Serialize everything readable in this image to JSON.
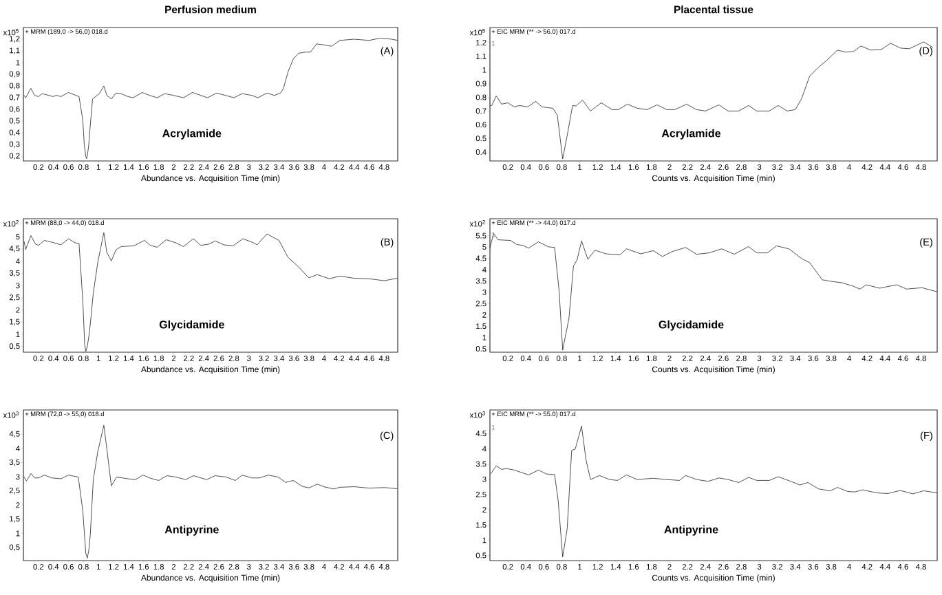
{
  "chart_data": [
    {
      "type": "line",
      "title": "Perfusion medium",
      "xlabel": "Abundance vs. Acquisition Time (min)",
      "ylabel": "x10$^{5}$",
      "annotations": [
        "+ MRM (189,0 -> 56,0) 018.d",
        "(A)",
        "Acrylamide"
      ],
      "xlim": [
        0,
        4.98
      ],
      "ylim": [
        0.16,
        1.3
      ],
      "xticks": [
        0.2,
        0.4,
        0.6,
        0.8,
        1,
        1.2,
        1.4,
        1.6,
        1.8,
        2,
        2.2,
        2.4,
        2.6,
        2.8,
        3,
        3.2,
        3.4,
        3.6,
        3.8,
        4,
        4.2,
        4.4,
        4.6,
        4.8
      ],
      "yticks": [
        {
          "value": 0.2,
          "label": "0,2"
        },
        {
          "value": 0.3,
          "label": "0,3"
        },
        {
          "value": 0.4,
          "label": "0,4"
        },
        {
          "value": 0.5,
          "label": "0,5"
        },
        {
          "value": 0.6,
          "label": "0,6"
        },
        {
          "value": 0.7,
          "label": "0,7"
        },
        {
          "value": 0.8,
          "label": "0,8"
        },
        {
          "value": 0.9,
          "label": "0,9"
        },
        1,
        {
          "value": 1.1,
          "label": "1,1"
        },
        {
          "value": 1.2,
          "label": "1,2"
        }
      ],
      "x": [
        0.01,
        0.03,
        0.1,
        0.15,
        0.2,
        0.25,
        0.34,
        0.39,
        0.44,
        0.5,
        0.6,
        0.7,
        0.74,
        0.79,
        0.81,
        0.83,
        0.84,
        0.85,
        0.87,
        0.88,
        0.92,
        1.01,
        1.07,
        1.11,
        1.17,
        1.23,
        1.3,
        1.39,
        1.46,
        1.58,
        1.68,
        1.78,
        1.88,
        2.0,
        2.13,
        2.25,
        2.36,
        2.45,
        2.57,
        2.69,
        2.8,
        2.91,
        3.04,
        3.12,
        3.24,
        3.34,
        3.42,
        3.46,
        3.52,
        3.59,
        3.66,
        3.75,
        3.82,
        3.9,
        4.01,
        4.1,
        4.21,
        4.4,
        4.6,
        4.75,
        4.9,
        4.98
      ],
      "series": [
        {
          "color": "#222222",
          "values": [
            0.72,
            0.7,
            0.78,
            0.72,
            0.71,
            0.735,
            0.72,
            0.71,
            0.72,
            0.71,
            0.745,
            0.72,
            0.71,
            0.51,
            0.3,
            0.2,
            0.18,
            0.2,
            0.3,
            0.39,
            0.69,
            0.735,
            0.8,
            0.72,
            0.69,
            0.74,
            0.735,
            0.71,
            0.7,
            0.745,
            0.72,
            0.7,
            0.735,
            0.72,
            0.7,
            0.745,
            0.72,
            0.7,
            0.74,
            0.72,
            0.7,
            0.735,
            0.72,
            0.7,
            0.74,
            0.72,
            0.74,
            0.78,
            0.92,
            1.03,
            1.08,
            1.09,
            1.09,
            1.16,
            1.15,
            1.14,
            1.19,
            1.2,
            1.19,
            1.21,
            1.2,
            1.19
          ]
        }
      ]
    },
    {
      "type": "line",
      "title": "Placental tissue",
      "xlabel": "Counts vs. Acquisition Time (min)",
      "ylabel": "x10$^{5}$",
      "annotations": [
        "+ EIC MRM (** -> 56.0) 017.d",
        "(D)",
        "Acrylamide",
        "1"
      ],
      "xlim": [
        0,
        4.98
      ],
      "ylim": [
        0.335,
        1.31
      ],
      "xticks": [
        0.2,
        0.4,
        0.6,
        0.8,
        1,
        1.2,
        1.4,
        1.6,
        1.8,
        2,
        2.2,
        2.4,
        2.6,
        2.8,
        3,
        3.2,
        3.4,
        3.6,
        3.8,
        4,
        4.2,
        4.4,
        4.6,
        4.8
      ],
      "yticks": [
        0.4,
        0.5,
        0.6,
        0.7,
        0.8,
        0.9,
        1,
        1.1,
        1.2
      ],
      "x": [
        0.0,
        0.02,
        0.07,
        0.13,
        0.2,
        0.27,
        0.33,
        0.42,
        0.51,
        0.58,
        0.7,
        0.75,
        0.81,
        0.86,
        0.92,
        0.96,
        1.03,
        1.12,
        1.24,
        1.36,
        1.43,
        1.53,
        1.64,
        1.75,
        1.86,
        1.97,
        2.06,
        2.19,
        2.3,
        2.4,
        2.55,
        2.65,
        2.77,
        2.88,
        2.97,
        3.11,
        3.21,
        3.31,
        3.4,
        3.47,
        3.56,
        3.66,
        3.75,
        3.87,
        3.96,
        4.05,
        4.13,
        4.24,
        4.36,
        4.46,
        4.57,
        4.67,
        4.83,
        4.93
      ],
      "series": [
        {
          "color": "#222222",
          "values": [
            0.737,
            0.74,
            0.81,
            0.75,
            0.76,
            0.73,
            0.74,
            0.73,
            0.77,
            0.73,
            0.72,
            0.67,
            0.35,
            0.52,
            0.74,
            0.737,
            0.78,
            0.7,
            0.76,
            0.71,
            0.71,
            0.75,
            0.72,
            0.71,
            0.745,
            0.71,
            0.71,
            0.75,
            0.71,
            0.7,
            0.745,
            0.7,
            0.7,
            0.74,
            0.7,
            0.7,
            0.74,
            0.7,
            0.71,
            0.79,
            0.955,
            1.02,
            1.07,
            1.145,
            1.13,
            1.135,
            1.175,
            1.145,
            1.15,
            1.195,
            1.16,
            1.155,
            1.205,
            1.165
          ]
        }
      ]
    },
    {
      "type": "line",
      "xlabel": "Abundance vs. Acquisition Time (min)",
      "ylabel": "x10$^{2}$",
      "annotations": [
        "+ MRM (88,0 -> 44,0) 018.d",
        "(B)",
        "Glycidamide"
      ],
      "xlim": [
        0,
        4.98
      ],
      "ylim": [
        0.27,
        5.74
      ],
      "xticks": [
        0.2,
        0.4,
        0.6,
        0.8,
        1,
        1.2,
        1.4,
        1.6,
        1.8,
        2,
        2.2,
        2.4,
        2.6,
        2.8,
        3,
        3.2,
        3.4,
        3.6,
        3.8,
        4,
        4.2,
        4.4,
        4.6,
        4.8
      ],
      "yticks": [
        {
          "value": 0.5,
          "label": "0,5"
        },
        1,
        {
          "value": 1.5,
          "label": "1,5"
        },
        2,
        {
          "value": 2.5,
          "label": "2,5"
        },
        3,
        {
          "value": 3.5,
          "label": "3,5"
        },
        4,
        {
          "value": 4.5,
          "label": "4,5"
        },
        5
      ],
      "x": [
        0.01,
        0.03,
        0.1,
        0.16,
        0.2,
        0.28,
        0.39,
        0.5,
        0.6,
        0.69,
        0.74,
        0.79,
        0.815,
        0.83,
        0.85,
        0.88,
        0.93,
        0.99,
        1.07,
        1.11,
        1.17,
        1.23,
        1.3,
        1.47,
        1.61,
        1.69,
        1.78,
        1.9,
        2.03,
        2.13,
        2.26,
        2.36,
        2.47,
        2.55,
        2.67,
        2.79,
        2.92,
        3.05,
        3.11,
        3.24,
        3.4,
        3.52,
        3.66,
        3.78,
        3.8,
        3.91,
        4.07,
        4.21,
        4.4,
        4.6,
        4.8,
        4.97
      ],
      "series": [
        {
          "color": "#222222",
          "values": [
            4.8,
            4.48,
            5.05,
            4.7,
            4.65,
            4.85,
            4.77,
            4.67,
            4.92,
            4.75,
            4.73,
            2.39,
            0.6,
            0.3,
            0.5,
            1.11,
            2.69,
            3.96,
            5.17,
            4.36,
            4.01,
            4.46,
            4.6,
            4.63,
            4.85,
            4.65,
            4.57,
            4.88,
            4.75,
            4.6,
            4.92,
            4.65,
            4.7,
            4.83,
            4.67,
            4.63,
            4.92,
            4.77,
            4.67,
            5.12,
            4.85,
            4.16,
            3.77,
            3.37,
            3.32,
            3.45,
            3.28,
            3.39,
            3.3,
            3.28,
            3.2,
            3.3
          ]
        }
      ]
    },
    {
      "type": "line",
      "xlabel": "Counts vs. Acquisition Time (min)",
      "ylabel": "x10$^{2}$",
      "annotations": [
        "+ EIC MRM (** -> 44.0) 017.d",
        "(E)",
        "Glycidamide",
        "1"
      ],
      "xlim": [
        0,
        4.98
      ],
      "ylim": [
        0.35,
        6.25
      ],
      "xticks": [
        0.2,
        0.4,
        0.6,
        0.8,
        1,
        1.2,
        1.4,
        1.6,
        1.8,
        2,
        2.2,
        2.4,
        2.6,
        2.8,
        3,
        3.2,
        3.4,
        3.6,
        3.8,
        4,
        4.2,
        4.4,
        4.6,
        4.8
      ],
      "yticks": [
        0.5,
        1,
        1.5,
        2,
        2.5,
        3,
        3.5,
        4,
        4.5,
        5,
        5.5
      ],
      "x": [
        0.0,
        0.04,
        0.09,
        0.23,
        0.3,
        0.37,
        0.43,
        0.54,
        0.65,
        0.72,
        0.77,
        0.81,
        0.88,
        0.93,
        0.97,
        1.02,
        1.09,
        1.17,
        1.29,
        1.45,
        1.52,
        1.68,
        1.82,
        1.92,
        2.03,
        2.18,
        2.3,
        2.44,
        2.58,
        2.72,
        2.88,
        2.97,
        3.09,
        3.19,
        3.33,
        3.47,
        3.56,
        3.7,
        3.82,
        3.92,
        4.05,
        4.12,
        4.19,
        4.34,
        4.53,
        4.64,
        4.81,
        4.98
      ],
      "series": [
        {
          "color": "#222222",
          "values": [
            4.95,
            5.6,
            5.32,
            5.29,
            5.11,
            5.07,
            4.95,
            5.23,
            5.01,
            4.98,
            3.08,
            0.44,
            1.85,
            4.16,
            4.43,
            5.27,
            4.46,
            4.86,
            4.7,
            4.65,
            4.92,
            4.7,
            4.84,
            4.58,
            4.8,
            4.98,
            4.68,
            4.74,
            4.92,
            4.68,
            5.02,
            4.74,
            4.74,
            5.05,
            4.92,
            4.49,
            4.31,
            3.55,
            3.47,
            3.42,
            3.26,
            3.14,
            3.33,
            3.18,
            3.33,
            3.14,
            3.2,
            3.02
          ]
        }
      ]
    },
    {
      "type": "line",
      "xlabel": "Abundance vs. Acquisition Time (min)",
      "ylabel": "x10$^{3}$",
      "annotations": [
        "+ MRM (72,0 -> 55,0) 018.d",
        "(C)",
        "Antipyrine"
      ],
      "xlim": [
        0,
        4.98
      ],
      "ylim": [
        0.04,
        5.36
      ],
      "xticks": [
        0.2,
        0.4,
        0.6,
        0.8,
        1,
        1.2,
        1.4,
        1.6,
        1.8,
        2,
        2.2,
        2.4,
        2.6,
        2.8,
        3,
        3.2,
        3.4,
        3.6,
        3.8,
        4,
        4.2,
        4.4,
        4.6,
        4.8
      ],
      "yticks": [
        {
          "value": 0.5,
          "label": "0,5"
        },
        1,
        {
          "value": 1.5,
          "label": "1,5"
        },
        2,
        {
          "value": 2.5,
          "label": "2,5"
        },
        3,
        {
          "value": 3.5,
          "label": "3,5"
        },
        4,
        {
          "value": 4.5,
          "label": "4,5"
        }
      ],
      "x": [
        0.01,
        0.04,
        0.1,
        0.15,
        0.2,
        0.28,
        0.38,
        0.5,
        0.6,
        0.73,
        0.79,
        0.83,
        0.85,
        0.87,
        0.89,
        0.93,
        0.99,
        1.07,
        1.11,
        1.17,
        1.24,
        1.39,
        1.49,
        1.59,
        1.69,
        1.8,
        1.91,
        2.03,
        2.16,
        2.26,
        2.44,
        2.55,
        2.7,
        2.82,
        2.91,
        3.04,
        3.14,
        3.26,
        3.39,
        3.49,
        3.59,
        3.71,
        3.8,
        3.91,
        4.01,
        4.13,
        4.21,
        4.4,
        4.6,
        4.8,
        4.97
      ],
      "series": [
        {
          "color": "#222222",
          "values": [
            2.99,
            2.85,
            3.12,
            2.96,
            2.96,
            3.06,
            2.96,
            2.93,
            3.06,
            2.99,
            1.81,
            0.3,
            0.13,
            0.4,
            0.95,
            2.9,
            3.89,
            4.82,
            3.99,
            2.68,
            2.99,
            2.93,
            2.9,
            3.06,
            2.95,
            2.87,
            3.04,
            2.99,
            2.9,
            3.04,
            2.9,
            3.04,
            2.99,
            2.87,
            3.06,
            2.96,
            2.96,
            3.06,
            2.99,
            2.8,
            2.87,
            2.66,
            2.61,
            2.74,
            2.64,
            2.57,
            2.63,
            2.65,
            2.6,
            2.62,
            2.58
          ]
        }
      ]
    },
    {
      "type": "line",
      "xlabel": "Counts vs. Acquisition Time (min)",
      "ylabel": "x10$^{3}$",
      "annotations": [
        "+ EIC MRM (** -> 55.0) 017.d",
        "(F)",
        "Antipyrine",
        "1"
      ],
      "xlim": [
        0,
        4.98
      ],
      "ylim": [
        0.33,
        5.27
      ],
      "xticks": [
        0.2,
        0.4,
        0.6,
        0.8,
        1,
        1.2,
        1.4,
        1.6,
        1.8,
        2,
        2.2,
        2.4,
        2.6,
        2.8,
        3,
        3.2,
        3.4,
        3.6,
        3.8,
        4,
        4.2,
        4.4,
        4.6,
        4.8
      ],
      "yticks": [
        0.5,
        1,
        1.5,
        2,
        2.5,
        3,
        3.5,
        4,
        4.5
      ],
      "x": [
        0.0,
        0.02,
        0.07,
        0.13,
        0.18,
        0.27,
        0.35,
        0.43,
        0.54,
        0.63,
        0.72,
        0.76,
        0.81,
        0.86,
        0.91,
        0.95,
        1.02,
        1.07,
        1.12,
        1.22,
        1.33,
        1.42,
        1.52,
        1.64,
        1.82,
        1.96,
        2.11,
        2.18,
        2.3,
        2.43,
        2.55,
        2.65,
        2.77,
        2.88,
        2.97,
        3.11,
        3.21,
        3.35,
        3.45,
        3.54,
        3.66,
        3.79,
        3.87,
        3.98,
        4.06,
        4.15,
        4.31,
        4.43,
        4.57,
        4.71,
        4.83,
        4.98
      ],
      "series": [
        {
          "color": "#222222",
          "values": [
            3.17,
            3.22,
            3.44,
            3.32,
            3.35,
            3.3,
            3.22,
            3.14,
            3.3,
            3.17,
            3.15,
            2.29,
            0.45,
            1.37,
            3.94,
            3.99,
            4.74,
            3.63,
            2.99,
            3.12,
            2.99,
            2.96,
            3.14,
            2.99,
            3.03,
            2.99,
            2.96,
            3.12,
            2.99,
            2.93,
            3.04,
            2.99,
            2.89,
            3.06,
            2.96,
            2.96,
            3.08,
            2.93,
            2.81,
            2.89,
            2.68,
            2.62,
            2.73,
            2.6,
            2.58,
            2.65,
            2.55,
            2.53,
            2.63,
            2.52,
            2.62,
            2.55
          ]
        }
      ]
    }
  ]
}
